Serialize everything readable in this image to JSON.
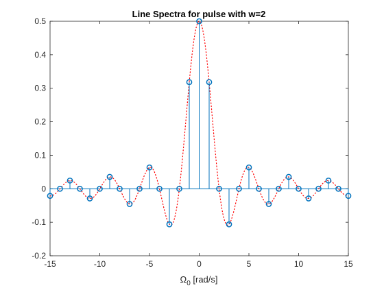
{
  "chart_data": {
    "type": "stem",
    "title": "Line Spectra for pulse with w=2",
    "xlabel_symbol": "Ω",
    "xlabel_sub": "0",
    "xlabel_unit": " [rad/s]",
    "ylabel": "",
    "xlim": [
      -15,
      15
    ],
    "ylim": [
      -0.2,
      0.5
    ],
    "xticks": [
      "-15",
      "-10",
      "-5",
      "0",
      "5",
      "10",
      "15"
    ],
    "xtick_values": [
      -15,
      -10,
      -5,
      0,
      5,
      10,
      15
    ],
    "yticks": [
      "-0.2",
      "-0.1",
      "0",
      "0.1",
      "0.2",
      "0.3",
      "0.4",
      "0.5"
    ],
    "ytick_values": [
      -0.2,
      -0.1,
      0,
      0.1,
      0.2,
      0.3,
      0.4,
      0.5
    ],
    "grid": false,
    "series": [
      {
        "style": "stem-circle",
        "color": "#0072BD",
        "x": [
          -15,
          -14,
          -13,
          -12,
          -11,
          -10,
          -9,
          -8,
          -7,
          -6,
          -5,
          -4,
          -3,
          -2,
          -1,
          0,
          1,
          2,
          3,
          4,
          5,
          6,
          7,
          8,
          9,
          10,
          11,
          12,
          13,
          14,
          15
        ],
        "values": [
          -0.0212,
          0,
          0.0245,
          0,
          -0.0289,
          0,
          0.0354,
          0,
          -0.0455,
          0,
          0.0637,
          0,
          -0.1061,
          0,
          0.3183,
          0.5,
          0.3183,
          0,
          -0.1061,
          0,
          0.0637,
          0,
          -0.0455,
          0,
          0.0354,
          0,
          -0.0289,
          0,
          0.0245,
          0,
          -0.0212
        ]
      },
      {
        "style": "dotted-envelope",
        "color": "#FF0000",
        "function": "0.5*sinc(x/2)",
        "x_range": [
          -15,
          15
        ]
      }
    ]
  }
}
